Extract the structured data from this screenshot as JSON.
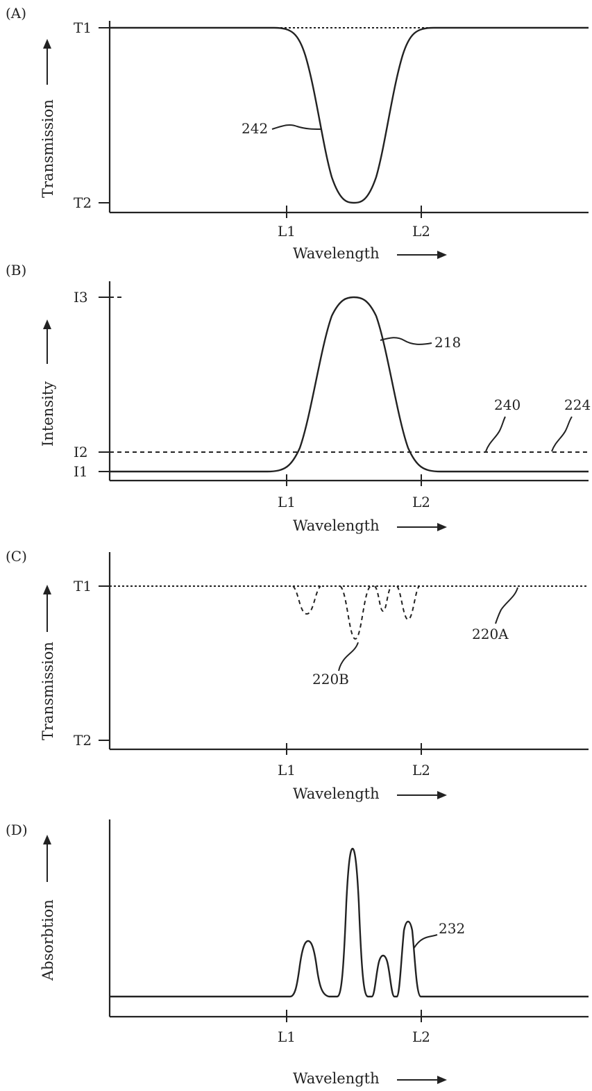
{
  "panels": {
    "A": {
      "tag": "(A)",
      "ylabel": "Transmission",
      "xlabel": "Wavelength",
      "y_ticks": [
        "T1",
        "T2"
      ],
      "x_ticks": [
        "L1",
        "L2"
      ],
      "callouts": [
        "242"
      ]
    },
    "B": {
      "tag": "(B)",
      "ylabel": "Intensity",
      "xlabel": "Wavelength",
      "y_ticks": [
        "I3",
        "I2",
        "I1"
      ],
      "x_ticks": [
        "L1",
        "L2"
      ],
      "callouts": [
        "218",
        "240",
        "224"
      ]
    },
    "C": {
      "tag": "(C)",
      "ylabel": "Transmission",
      "xlabel": "Wavelength",
      "y_ticks": [
        "T1",
        "T2"
      ],
      "x_ticks": [
        "L1",
        "L2"
      ],
      "callouts": [
        "220B",
        "220A"
      ]
    },
    "D": {
      "tag": "(D)",
      "ylabel": "Absorbtion",
      "xlabel": "Wavelength",
      "x_ticks": [
        "L1",
        "L2"
      ],
      "callouts": [
        "232"
      ]
    }
  },
  "colors": {
    "ink": "#222222",
    "background": "#ffffff"
  }
}
